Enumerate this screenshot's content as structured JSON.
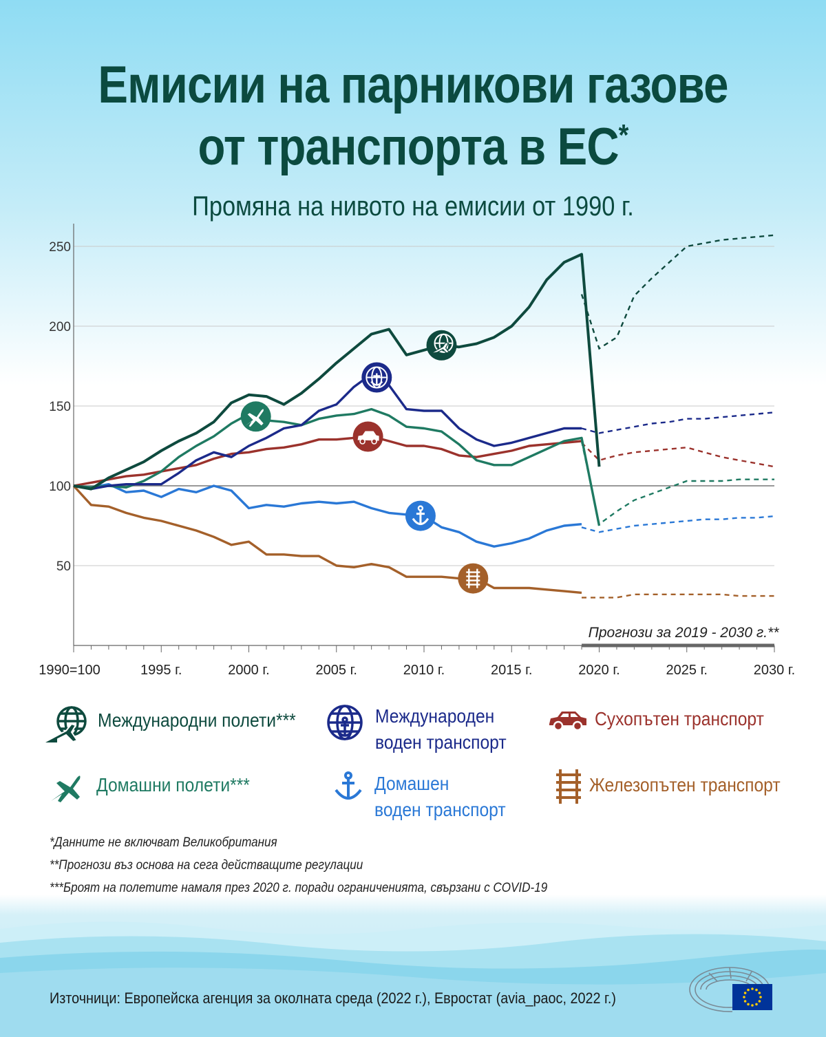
{
  "title_line1": "Емисии на парникови газове",
  "title_line2": "от транспорта в ЕС",
  "title_mark": "*",
  "subtitle": "Промяна на нивото на емисии от 1990 г.",
  "chart_data": {
    "type": "line",
    "title": "Промяна на нивото на емисии от 1990 г.",
    "ylim": [
      0,
      260
    ],
    "yticks": [
      50,
      100,
      150,
      200,
      250
    ],
    "xlim": [
      1990,
      2030
    ],
    "xticks": [
      {
        "x": 1990,
        "label": "1990=100"
      },
      {
        "x": 1995,
        "label": "1995 г."
      },
      {
        "x": 2000,
        "label": "2000 г."
      },
      {
        "x": 2005,
        "label": "2005 г."
      },
      {
        "x": 2010,
        "label": "2010 г."
      },
      {
        "x": 2015,
        "label": "2015 г."
      },
      {
        "x": 2020,
        "label": "2020 г."
      },
      {
        "x": 2025,
        "label": "2025 г."
      },
      {
        "x": 2030,
        "label": "2030 г."
      }
    ],
    "reference_line": 100,
    "projection_label": "Прогнози за 2019 - 2030 г.**",
    "projection_range": [
      2019,
      2030
    ],
    "series": [
      {
        "name": "Международни полети***",
        "color": "#0e4a3e",
        "icon": "globe-plane-icon",
        "icon_at": 2011,
        "x": [
          1990,
          1991,
          1992,
          1993,
          1994,
          1995,
          1996,
          1997,
          1998,
          1999,
          2000,
          2001,
          2002,
          2003,
          2004,
          2005,
          2006,
          2007,
          2008,
          2009,
          2010,
          2011,
          2012,
          2013,
          2014,
          2015,
          2016,
          2017,
          2018,
          2019,
          2020
        ],
        "values": [
          100,
          98,
          105,
          110,
          115,
          122,
          128,
          133,
          140,
          152,
          157,
          156,
          151,
          158,
          167,
          177,
          186,
          195,
          198,
          182,
          185,
          188,
          187,
          189,
          193,
          200,
          212,
          229,
          240,
          245,
          112
        ],
        "proj_x": [
          2019,
          2020,
          2021,
          2022,
          2023,
          2024,
          2025,
          2026,
          2027,
          2028,
          2029,
          2030
        ],
        "proj_values": [
          220,
          186,
          193,
          219,
          230,
          240,
          250,
          252,
          254,
          255,
          256,
          257
        ]
      },
      {
        "name": "Международен воден транспорт",
        "color": "#1b2a8a",
        "icon": "globe-anchor-icon",
        "icon_at": 2007.3,
        "x": [
          1990,
          1991,
          1992,
          1993,
          1994,
          1995,
          1996,
          1997,
          1998,
          1999,
          2000,
          2001,
          2002,
          2003,
          2004,
          2005,
          2006,
          2007,
          2008,
          2009,
          2010,
          2011,
          2012,
          2013,
          2014,
          2015,
          2016,
          2017,
          2018,
          2019
        ],
        "values": [
          100,
          98,
          100,
          101,
          101,
          101,
          108,
          116,
          121,
          118,
          125,
          130,
          136,
          138,
          147,
          151,
          162,
          170,
          163,
          148,
          147,
          147,
          136,
          129,
          125,
          127,
          130,
          133,
          136,
          136
        ],
        "proj_x": [
          2019,
          2020,
          2021,
          2022,
          2023,
          2024,
          2025,
          2026,
          2027,
          2028,
          2029,
          2030
        ],
        "proj_values": [
          136,
          133,
          135,
          137,
          139,
          140,
          142,
          142,
          143,
          144,
          145,
          146
        ]
      },
      {
        "name": "Сухопътен транспорт",
        "color": "#9b322c",
        "icon": "car-icon",
        "icon_at": 2006.8,
        "x": [
          1990,
          1991,
          1992,
          1993,
          1994,
          1995,
          1996,
          1997,
          1998,
          1999,
          2000,
          2001,
          2002,
          2003,
          2004,
          2005,
          2006,
          2007,
          2008,
          2009,
          2010,
          2011,
          2012,
          2013,
          2014,
          2015,
          2016,
          2017,
          2018,
          2019
        ],
        "values": [
          100,
          102,
          104,
          106,
          107,
          109,
          111,
          113,
          117,
          120,
          121,
          123,
          124,
          126,
          129,
          129,
          130,
          131,
          128,
          125,
          125,
          123,
          119,
          118,
          120,
          122,
          125,
          126,
          127,
          128
        ],
        "proj_x": [
          2019,
          2020,
          2021,
          2022,
          2023,
          2024,
          2025,
          2026,
          2027,
          2028,
          2029,
          2030
        ],
        "proj_values": [
          127,
          116,
          119,
          121,
          122,
          123,
          124,
          121,
          118,
          116,
          114,
          112
        ]
      },
      {
        "name": "Домашни полети***",
        "color": "#1f7a62",
        "icon": "plane-icon",
        "icon_at": 2000.4,
        "x": [
          1990,
          1991,
          1992,
          1993,
          1994,
          1995,
          1996,
          1997,
          1998,
          1999,
          2000,
          2001,
          2002,
          2003,
          2004,
          2005,
          2006,
          2007,
          2008,
          2009,
          2010,
          2011,
          2012,
          2013,
          2014,
          2015,
          2016,
          2017,
          2018,
          2019,
          2020
        ],
        "values": [
          100,
          99,
          100,
          99,
          103,
          109,
          118,
          125,
          131,
          139,
          145,
          141,
          140,
          138,
          142,
          144,
          145,
          148,
          144,
          137,
          136,
          134,
          126,
          116,
          113,
          113,
          118,
          123,
          128,
          130,
          75
        ],
        "proj_x": [
          2019,
          2020,
          2021,
          2022,
          2023,
          2024,
          2025,
          2026,
          2027,
          2028,
          2029,
          2030
        ],
        "proj_values": [
          128,
          76,
          84,
          91,
          95,
          99,
          103,
          103,
          103,
          104,
          104,
          104
        ]
      },
      {
        "name": "Домашен воден транспорт",
        "color": "#2a78d6",
        "icon": "anchor-icon",
        "icon_at": 2009.8,
        "x": [
          1990,
          1991,
          1992,
          1993,
          1994,
          1995,
          1996,
          1997,
          1998,
          1999,
          2000,
          2001,
          2002,
          2003,
          2004,
          2005,
          2006,
          2007,
          2008,
          2009,
          2010,
          2011,
          2012,
          2013,
          2014,
          2015,
          2016,
          2017,
          2018,
          2019
        ],
        "values": [
          100,
          99,
          101,
          96,
          97,
          93,
          98,
          96,
          100,
          97,
          86,
          88,
          87,
          89,
          90,
          89,
          90,
          86,
          83,
          82,
          81,
          74,
          71,
          65,
          62,
          64,
          67,
          72,
          75,
          76
        ],
        "proj_x": [
          2019,
          2020,
          2021,
          2022,
          2023,
          2024,
          2025,
          2026,
          2027,
          2028,
          2029,
          2030
        ],
        "proj_values": [
          74,
          71,
          73,
          75,
          76,
          77,
          78,
          79,
          79,
          80,
          80,
          81
        ]
      },
      {
        "name": "Железопътен транспорт",
        "color": "#a4602a",
        "icon": "railway-icon",
        "icon_at": 2012.8,
        "x": [
          1990,
          1991,
          1992,
          1993,
          1994,
          1995,
          1996,
          1997,
          1998,
          1999,
          2000,
          2001,
          2002,
          2003,
          2004,
          2005,
          2006,
          2007,
          2008,
          2009,
          2010,
          2011,
          2012,
          2013,
          2014,
          2015,
          2016,
          2017,
          2018,
          2019
        ],
        "values": [
          100,
          88,
          87,
          83,
          80,
          78,
          75,
          72,
          68,
          63,
          65,
          57,
          57,
          56,
          56,
          50,
          49,
          51,
          49,
          43,
          43,
          43,
          42,
          42,
          36,
          36,
          36,
          35,
          34,
          33
        ],
        "proj_x": [
          2019,
          2020,
          2021,
          2022,
          2023,
          2024,
          2025,
          2026,
          2027,
          2028,
          2029,
          2030
        ],
        "proj_values": [
          30,
          30,
          30,
          32,
          32,
          32,
          32,
          32,
          32,
          31,
          31,
          31
        ]
      }
    ]
  },
  "legend": [
    {
      "label": "Международни полети***",
      "color": "#0e4a3e",
      "icon": "globe-plane-icon"
    },
    {
      "label": "Международен воден транспорт",
      "color": "#1b2a8a",
      "icon": "globe-anchor-icon"
    },
    {
      "label": "Сухопътен транспорт",
      "color": "#9b322c",
      "icon": "car-icon"
    },
    {
      "label": "Домашни полети***",
      "color": "#1f7a62",
      "icon": "plane-icon"
    },
    {
      "label": "Домашен воден транспорт",
      "color": "#2a78d6",
      "icon": "anchor-icon"
    },
    {
      "label": "Железопътен транспорт",
      "color": "#a4602a",
      "icon": "railway-icon"
    }
  ],
  "legend_lines": {
    "intl_water_1": "Международен",
    "intl_water_2": "воден транспорт",
    "dom_water_1": "Домашен",
    "dom_water_2": "воден транспорт"
  },
  "notes": [
    "*Данните не включват Великобритания",
    "**Прогнози въз основа на сега действащите регулации",
    "***Броят на полетите намаля през 2020 г. поради ограниченията, свързани с COVID-19"
  ],
  "source": "Източници: Европейска агенция за околната среда (2022 г.), Евростат (avia_paoc, 2022 г.)",
  "colors": {
    "title": "#0b4a3f",
    "grid": "#c8c8c8",
    "axis": "#666666",
    "eu_blue": "#003399",
    "eu_gold": "#ffcc00"
  }
}
